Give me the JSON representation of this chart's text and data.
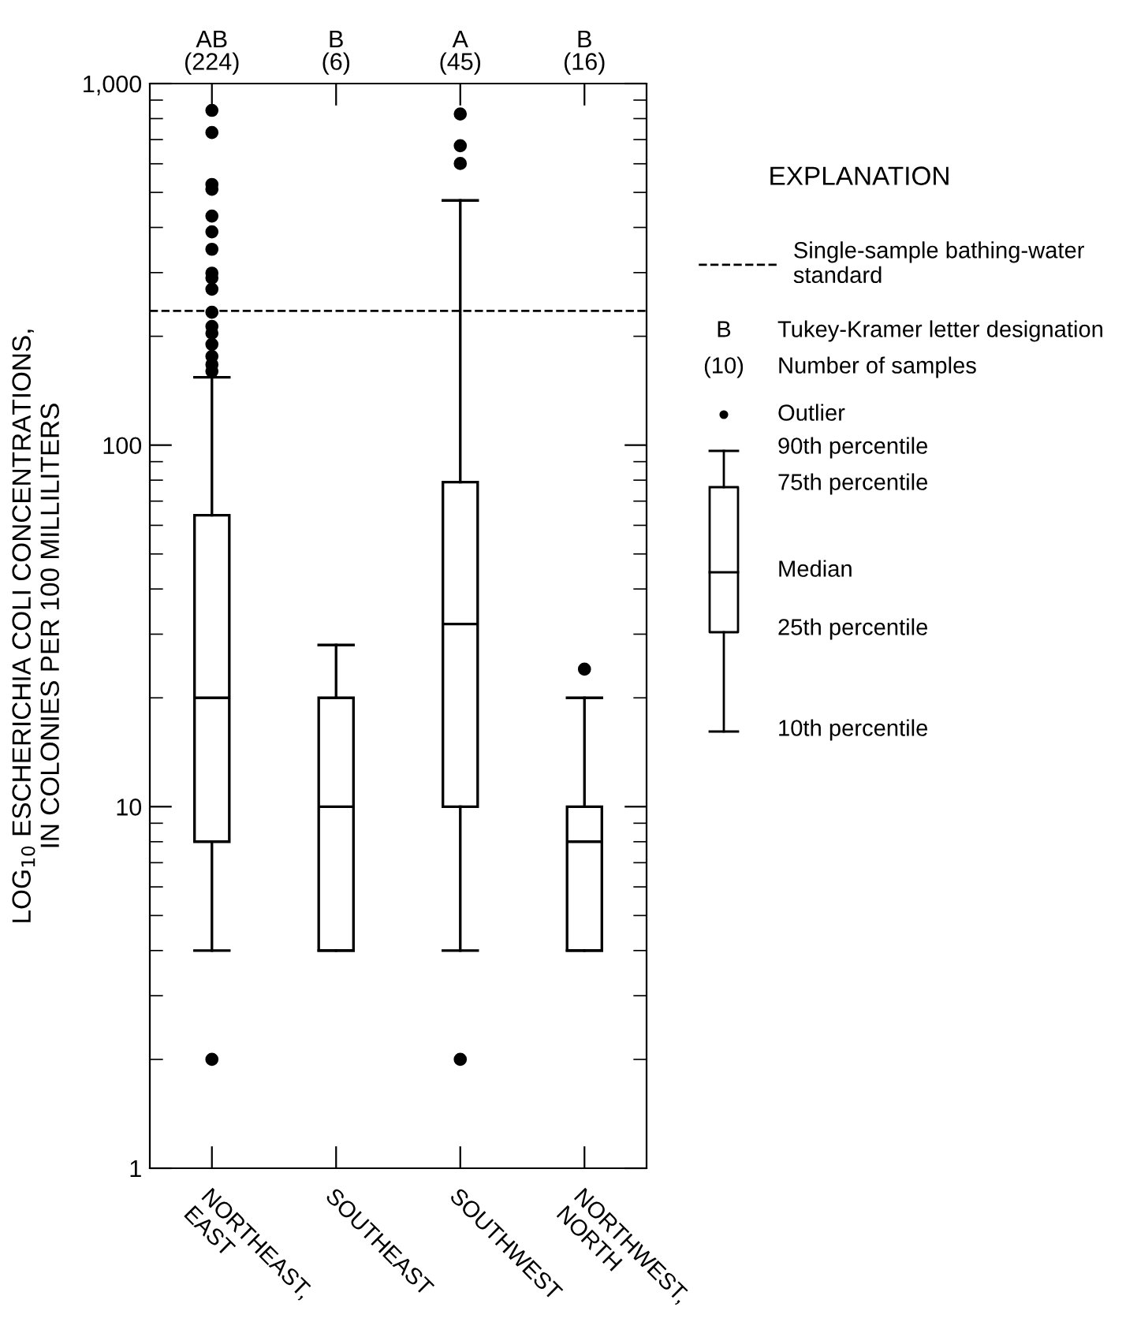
{
  "chart_data": {
    "type": "box",
    "ylabel": "LOG$_{10}$ ESCHERICHIA COLI CONCENTRATIONS,\nIN COLONIES PER 100 MILLILITERS",
    "categories": [
      "NORTHEAST,\nEAST",
      "SOUTHEAST",
      "SOUTHWEST",
      "NORTHWEST,\nNORTH"
    ],
    "boxes": [
      {
        "low": 4,
        "q1": 8,
        "median": 20,
        "q3": 64,
        "high": 154,
        "outliers": [
          2,
          160,
          167,
          176,
          190,
          204,
          213,
          233,
          270,
          290,
          299,
          348,
          389,
          430,
          510,
          526,
          732,
          843
        ]
      },
      {
        "low": 4,
        "q1": 4,
        "median": 10,
        "q3": 20,
        "high": 28
      },
      {
        "low": 4,
        "q1": 10,
        "median": 32,
        "q3": 79,
        "high": 475,
        "outliers": [
          2,
          601,
          673,
          824
        ]
      },
      {
        "low": 4,
        "q1": 4,
        "median": 8,
        "q3": 10,
        "high": 20,
        "outliers": [
          24
        ]
      }
    ],
    "log": "y",
    "ylim": [
      1,
      1000
    ],
    "yticks": [
      1,
      10,
      100,
      {
        "value": 1000,
        "label": "1,000"
      }
    ],
    "ref_lines": [
      {
        "axis": "y",
        "value": 235,
        "label": "Single-sample bathing-water\nstandard",
        "line_style": "dashed",
        "color": "#000000"
      }
    ],
    "annotations": [
      "AB\n(224)",
      "B\n(6)",
      "A\n(45)",
      "B\n(16)",
      "EXPLANATION",
      "B",
      "(10)",
      "Tukey-Kramer letter designation",
      "Number of samples",
      "Outlier",
      "90th percentile",
      "75th percentile",
      "Median",
      "25th percentile",
      "10th percentile"
    ],
    "grid": false,
    "legend": "right"
  }
}
